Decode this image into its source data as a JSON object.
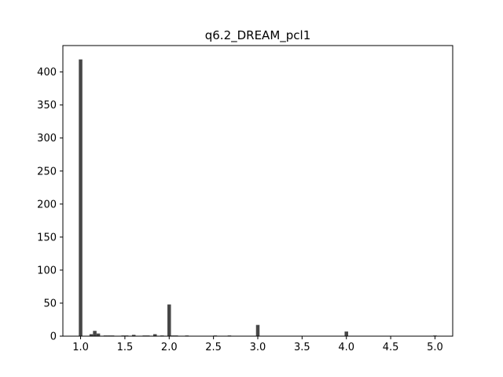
{
  "chart_data": {
    "type": "bar",
    "title": "q6.2_DREAM_pcl1",
    "xlabel": "",
    "ylabel": "",
    "xlim": [
      0.8,
      5.2
    ],
    "ylim": [
      0,
      440
    ],
    "xticks": [
      "1.0",
      "1.5",
      "2.0",
      "2.5",
      "3.0",
      "3.5",
      "4.0",
      "4.5",
      "5.0"
    ],
    "xtick_values": [
      1.0,
      1.5,
      2.0,
      2.5,
      3.0,
      3.5,
      4.0,
      4.5,
      5.0
    ],
    "yticks": [
      "0",
      "50",
      "100",
      "150",
      "200",
      "250",
      "300",
      "350",
      "400"
    ],
    "ytick_values": [
      0,
      50,
      100,
      150,
      200,
      250,
      300,
      350,
      400
    ],
    "bin_width": 0.04,
    "bar_color": "#474747",
    "grid": false,
    "legend": "none",
    "bins": [
      {
        "x": 1.0,
        "count": 419
      },
      {
        "x": 1.12,
        "count": 3
      },
      {
        "x": 1.16,
        "count": 8
      },
      {
        "x": 1.2,
        "count": 4
      },
      {
        "x": 1.28,
        "count": 1
      },
      {
        "x": 1.32,
        "count": 1
      },
      {
        "x": 1.36,
        "count": 1
      },
      {
        "x": 1.48,
        "count": 1
      },
      {
        "x": 1.52,
        "count": 1
      },
      {
        "x": 1.6,
        "count": 2
      },
      {
        "x": 1.72,
        "count": 1
      },
      {
        "x": 1.76,
        "count": 1
      },
      {
        "x": 1.84,
        "count": 3
      },
      {
        "x": 1.92,
        "count": 1
      },
      {
        "x": 2.0,
        "count": 48
      },
      {
        "x": 2.04,
        "count": 1
      },
      {
        "x": 2.08,
        "count": 1
      },
      {
        "x": 2.2,
        "count": 1
      },
      {
        "x": 2.52,
        "count": 1
      },
      {
        "x": 2.68,
        "count": 1
      },
      {
        "x": 3.0,
        "count": 17
      },
      {
        "x": 4.0,
        "count": 7
      },
      {
        "x": 5.0,
        "count": 1
      }
    ]
  }
}
